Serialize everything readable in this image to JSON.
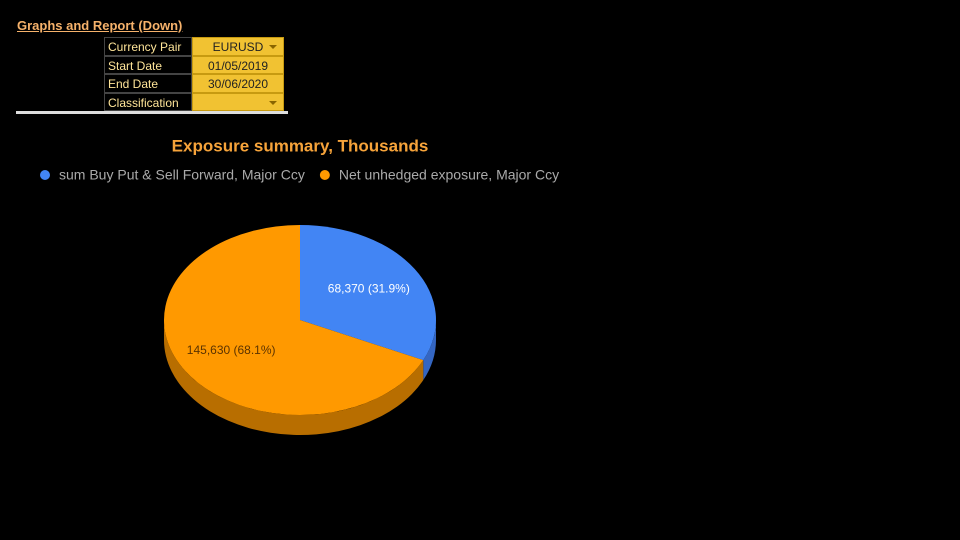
{
  "header": {
    "title": "Graphs and Report (Down)",
    "fields": [
      {
        "label": "Currency Pair",
        "value": "EURUSD"
      },
      {
        "label": "Start Date",
        "value": "01/05/2019"
      },
      {
        "label": "End Date",
        "value": "30/06/2020"
      },
      {
        "label": "Classification"
      }
    ]
  },
  "chart_data": {
    "type": "pie",
    "title": "Exposure summary, Thousands",
    "categories": [
      "sum Buy Put & Sell Forward, Major Ccy",
      "Net unhedged exposure, Major Ccy"
    ],
    "values": [
      68370,
      145630
    ],
    "value_labels": [
      "68,370 (31.9%)",
      "145,630 (68.1%)"
    ],
    "colors": [
      "#4285f4",
      "#ff9900"
    ],
    "side_colors": [
      "#3466c2",
      "#b86e00"
    ],
    "label_colors": [
      "#ffffff",
      "#5b3300"
    ],
    "legend": "top"
  }
}
